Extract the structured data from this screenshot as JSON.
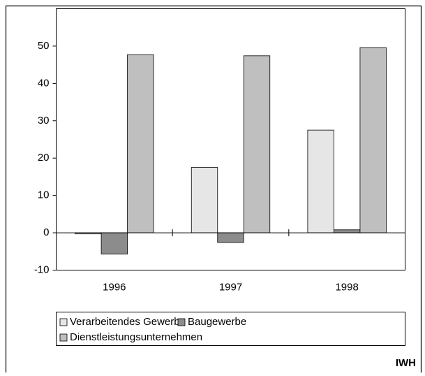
{
  "chart_data": {
    "type": "bar",
    "categories": [
      "1996",
      "1997",
      "1998"
    ],
    "series": [
      {
        "name": "Verarbeitendes Gewerbe",
        "color": "#e6e6e6",
        "values": [
          -0.3,
          17.5,
          27.5
        ]
      },
      {
        "name": "Baugewerbe",
        "color": "#8c8c8c",
        "values": [
          -5.7,
          -2.6,
          0.8
        ]
      },
      {
        "name": "Dienstleistungsunternehmen",
        "color": "#bfbfbf",
        "values": [
          47.7,
          47.4,
          49.6
        ]
      }
    ],
    "ylim": [
      -10,
      60
    ],
    "yticks": [
      -10,
      0,
      10,
      20,
      30,
      40,
      50
    ],
    "grid": false,
    "source": "IWH"
  }
}
